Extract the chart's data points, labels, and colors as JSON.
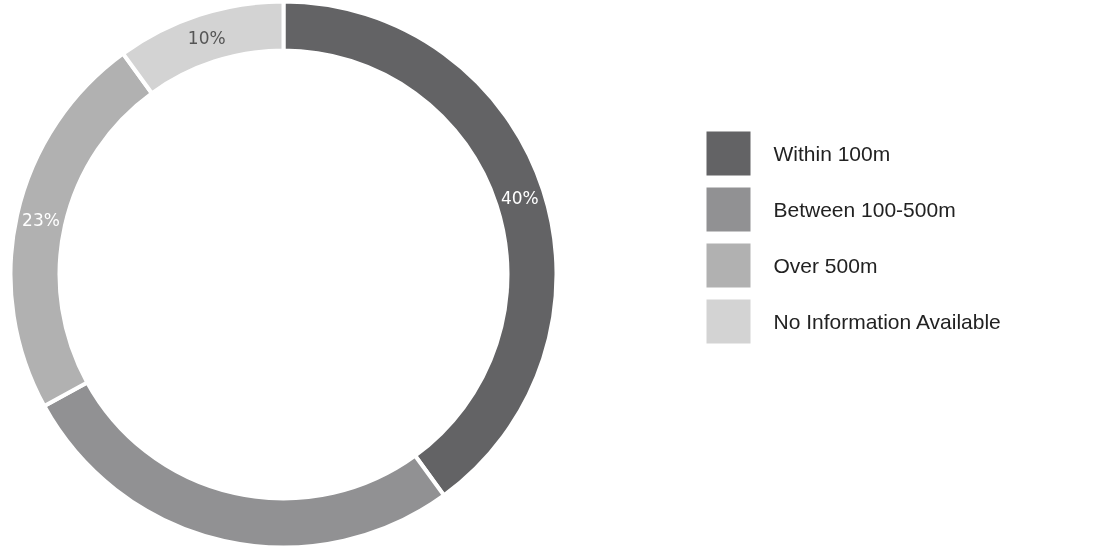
{
  "chart_data": {
    "type": "donut",
    "categories": [
      "Within 100m",
      "Between 100-500m",
      "Over 500m",
      "No Information Available"
    ],
    "values": [
      40,
      27,
      23,
      10
    ],
    "colors": [
      "#636365",
      "#919193",
      "#b1b1b1",
      "#d3d3d3"
    ],
    "value_labels": [
      "40%",
      null,
      "23%",
      "10%"
    ],
    "legend": "right"
  }
}
